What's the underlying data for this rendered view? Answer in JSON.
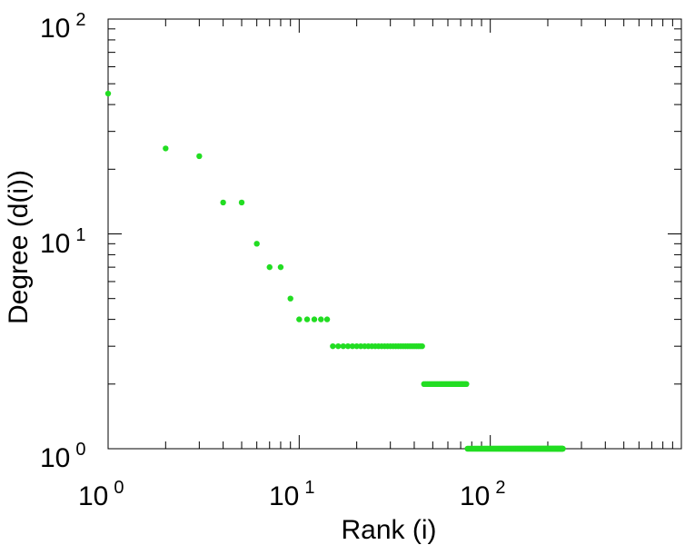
{
  "chart_data": {
    "type": "scatter",
    "title": "",
    "xlabel": "Rank (i)",
    "ylabel": "Degree (d(i))",
    "xscale": "log",
    "yscale": "log",
    "xlim": [
      1,
      1000
    ],
    "ylim": [
      1,
      100
    ],
    "grid": false,
    "marker_color": "#22dd22",
    "x_ticks": [
      {
        "base": "10",
        "exp": "0",
        "value": 1
      },
      {
        "base": "10",
        "exp": "1",
        "value": 10
      },
      {
        "base": "10",
        "exp": "2",
        "value": 100
      }
    ],
    "y_ticks": [
      {
        "base": "10",
        "exp": "0",
        "value": 1
      },
      {
        "base": "10",
        "exp": "1",
        "value": 10
      },
      {
        "base": "10",
        "exp": "2",
        "value": 100
      }
    ],
    "points": [
      {
        "x": 1,
        "y": 45
      },
      {
        "x": 2,
        "y": 25
      },
      {
        "x": 3,
        "y": 23
      },
      {
        "x": 4,
        "y": 14
      },
      {
        "x": 5,
        "y": 14
      },
      {
        "x": 6,
        "y": 9
      },
      {
        "x": 7,
        "y": 7
      },
      {
        "x": 8,
        "y": 7
      },
      {
        "x": 9,
        "y": 5
      },
      {
        "x": 10,
        "y": 4
      },
      {
        "x": 11,
        "y": 4
      },
      {
        "x": 12,
        "y": 4
      },
      {
        "x": 13,
        "y": 4
      },
      {
        "x": 14,
        "y": 4
      }
    ],
    "runs": [
      {
        "y": 3,
        "x_from": 15,
        "x_to": 44
      },
      {
        "y": 2,
        "x_from": 45,
        "x_to": 75
      },
      {
        "y": 1,
        "x_from": 76,
        "x_to": 240
      }
    ]
  }
}
